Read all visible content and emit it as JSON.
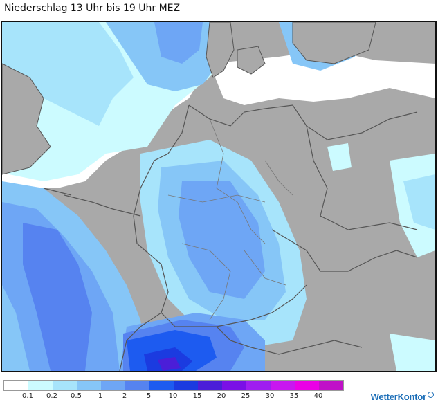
{
  "title": "Niederschlag 13 Uhr bis 19 Uhr MEZ",
  "legend": {
    "colors": [
      "#ffffff",
      "#ccfbff",
      "#a7e4fb",
      "#86c6f7",
      "#6ea6f5",
      "#5683f0",
      "#1d5bf0",
      "#1b3be0",
      "#4b1ed8",
      "#7a10e6",
      "#9f1ef0",
      "#c817f0",
      "#ea00e6",
      "#c010c8"
    ],
    "labels": [
      "0.1",
      "0.2",
      "0.5",
      "1",
      "2",
      "5",
      "10",
      "15",
      "20",
      "25",
      "30",
      "35",
      "40"
    ]
  },
  "brand": {
    "name": "WetterKontor",
    "accent": "#1d6fb8"
  }
}
